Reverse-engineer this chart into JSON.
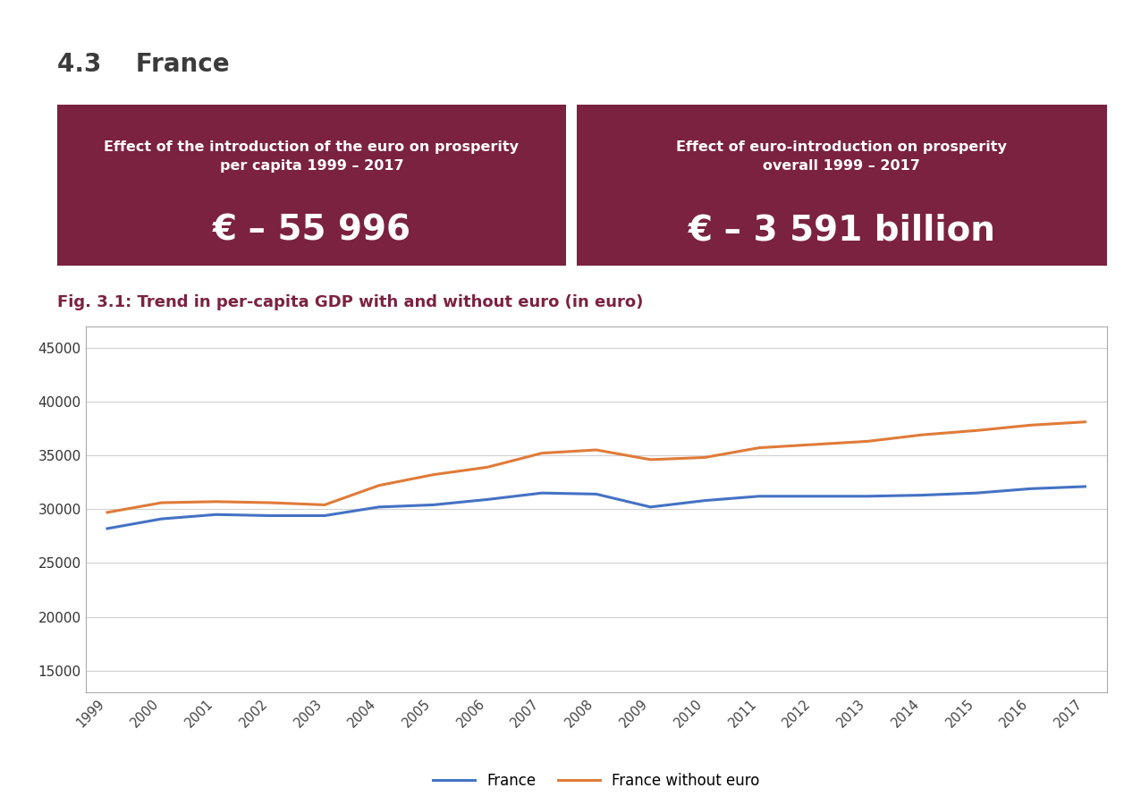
{
  "title_section": "4.3    France",
  "box1_title": "Effect of the introduction of the euro on prosperity\nper capita 1999 – 2017",
  "box1_value": "€ – 55 996",
  "box2_title": "Effect of euro-introduction on prosperity\noverall 1999 – 2017",
  "box2_value": "€ – 3 591 billion",
  "box_bg_color": "#7B2240",
  "box_text_color": "#FFFFFF",
  "chart_title": "Fig. 3.1: Trend in per-capita GDP with and without euro (in euro)",
  "chart_title_color": "#7B2240",
  "years": [
    1999,
    2000,
    2001,
    2002,
    2003,
    2004,
    2005,
    2006,
    2007,
    2008,
    2009,
    2010,
    2011,
    2012,
    2013,
    2014,
    2015,
    2016,
    2017
  ],
  "france_gdp": [
    28200,
    29100,
    29500,
    29400,
    29400,
    30200,
    30400,
    30900,
    31500,
    31400,
    30200,
    30800,
    31200,
    31200,
    31200,
    31300,
    31500,
    31900,
    32100
  ],
  "france_without_euro": [
    29700,
    30600,
    30700,
    30600,
    30400,
    32200,
    33200,
    33900,
    35200,
    35500,
    34600,
    34800,
    35700,
    36000,
    36300,
    36900,
    37300,
    37800,
    38100
  ],
  "france_color": "#4472C4",
  "without_euro_color": "#E07B39",
  "ylim": [
    13000,
    47000
  ],
  "yticks": [
    15000,
    20000,
    25000,
    30000,
    35000,
    40000,
    45000
  ],
  "legend_france": "France",
  "legend_without": "France without euro",
  "bg_color": "#FFFFFF",
  "grid_color": "#D0D0D0",
  "title_color": "#3B3B3B",
  "chart_border_color": "#AAAAAA"
}
